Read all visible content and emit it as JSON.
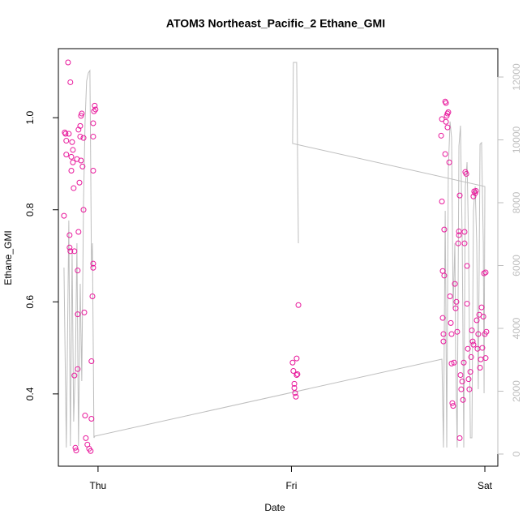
{
  "chart_data": {
    "type": "scatter",
    "title": "ATOM3 Northeast_Pacific_2 Ethane_GMI",
    "xlabel": "Date",
    "ylabel": "Ethane_GMI",
    "xlim": [
      -0.205,
      2.067
    ],
    "xticks": [
      {
        "value": 0,
        "label": "Thu"
      },
      {
        "value": 1,
        "label": "Fri"
      },
      {
        "value": 2,
        "label": "Sat"
      }
    ],
    "ylim": [
      0.243,
      1.15
    ],
    "yticks": [
      0.4,
      0.6,
      0.8,
      {
        "value": 1,
        "label": "1.0"
      }
    ],
    "y2lim": [
      -387,
      12903
    ],
    "y2ticks": [
      0,
      2000,
      4000,
      6000,
      8000,
      10000,
      12000
    ],
    "y2color": "#bebebe",
    "series": [
      {
        "type": "scatter",
        "color": "#e8179b",
        "x": [
          -0.176,
          -0.172,
          -0.168,
          -0.164,
          -0.164,
          -0.155,
          -0.151,
          -0.147,
          -0.147,
          -0.143,
          -0.143,
          -0.138,
          -0.138,
          -0.134,
          -0.13,
          -0.13,
          -0.126,
          -0.122,
          -0.122,
          -0.117,
          -0.113,
          -0.109,
          -0.105,
          -0.105,
          -0.105,
          -0.101,
          -0.101,
          -0.096,
          -0.092,
          -0.092,
          -0.088,
          -0.088,
          -0.084,
          -0.08,
          -0.075,
          -0.075,
          -0.071,
          -0.067,
          -0.063,
          -0.055,
          -0.046,
          -0.038,
          -0.034,
          -0.034,
          -0.029,
          -0.025,
          -0.025,
          -0.025,
          -0.025,
          -0.025,
          -0.021,
          -0.017,
          -0.013,
          1.006,
          1.01,
          1.015,
          1.015,
          1.019,
          1.023,
          1.027,
          1.027,
          1.031,
          1.036,
          1.774,
          1.778,
          1.778,
          1.782,
          1.782,
          1.786,
          1.786,
          1.79,
          1.79,
          1.795,
          1.795,
          1.799,
          1.799,
          1.803,
          1.807,
          1.807,
          1.811,
          1.816,
          1.82,
          1.824,
          1.828,
          1.828,
          1.832,
          1.836,
          1.841,
          1.845,
          1.849,
          1.853,
          1.857,
          1.862,
          1.866,
          1.866,
          1.87,
          1.87,
          1.874,
          1.878,
          1.883,
          1.887,
          1.891,
          1.895,
          1.895,
          1.899,
          1.904,
          1.908,
          1.908,
          1.912,
          1.916,
          1.92,
          1.925,
          1.929,
          1.933,
          1.937,
          1.941,
          1.941,
          1.945,
          1.95,
          1.954,
          1.958,
          1.962,
          1.966,
          1.971,
          1.975,
          1.979,
          1.983,
          1.987,
          1.992,
          1.996,
          2.0,
          2.004,
          2.004,
          2.008
        ],
        "values": [
          0.787,
          0.968,
          0.965,
          0.95,
          0.92,
          1.12,
          0.965,
          0.745,
          0.718,
          1.077,
          0.71,
          0.915,
          0.885,
          0.947,
          0.93,
          0.903,
          0.847,
          0.71,
          0.44,
          0.283,
          0.277,
          0.91,
          0.668,
          0.573,
          0.454,
          0.752,
          0.974,
          0.859,
          0.959,
          0.982,
          1.004,
          0.907,
          1.009,
          0.894,
          0.956,
          0.8,
          0.577,
          0.353,
          0.304,
          0.29,
          0.281,
          0.276,
          0.471,
          0.346,
          0.612,
          0.674,
          0.683,
          0.959,
          0.988,
          0.885,
          1.014,
          1.026,
          1.018,
          0.468,
          0.45,
          0.422,
          0.413,
          0.402,
          0.394,
          0.441,
          0.477,
          0.443,
          0.593,
          0.961,
          0.997,
          0.818,
          0.667,
          0.565,
          0.53,
          0.514,
          0.757,
          0.657,
          1.035,
          0.921,
          1.032,
          0.991,
          1.004,
          1.009,
          0.979,
          1.012,
          0.903,
          0.612,
          0.554,
          0.53,
          0.466,
          0.38,
          0.374,
          0.468,
          0.639,
          0.586,
          0.6,
          0.535,
          0.727,
          0.745,
          0.753,
          0.831,
          0.304,
          0.441,
          0.41,
          0.427,
          0.387,
          0.468,
          0.727,
          0.752,
          0.882,
          0.878,
          0.678,
          0.596,
          0.498,
          0.432,
          0.41,
          0.448,
          0.48,
          0.538,
          0.514,
          0.507,
          0.829,
          0.84,
          0.836,
          0.841,
          0.56,
          0.498,
          0.53,
          0.572,
          0.457,
          0.475,
          0.588,
          0.5,
          0.568,
          0.662,
          0.53,
          0.478,
          0.664,
          0.535
        ]
      },
      {
        "type": "line",
        "axis": "y2",
        "color": "#bebebe",
        "x": [
          -0.176,
          -0.164,
          -0.151,
          -0.143,
          -0.134,
          -0.126,
          -0.117,
          -0.109,
          -0.101,
          -0.092,
          -0.084,
          -0.075,
          -0.067,
          -0.059,
          -0.05,
          -0.042,
          -0.038,
          -0.034,
          -0.029,
          -0.021,
          -0.017,
          1.778,
          1.786,
          1.795,
          1.803,
          1.811,
          1.82,
          1.828,
          1.836,
          1.845,
          1.849,
          1.857,
          1.866,
          1.874,
          1.883,
          1.891,
          1.899,
          1.908,
          1.916,
          1.925,
          1.933,
          1.941,
          1.95,
          1.958,
          1.966,
          1.975,
          1.983,
          1.992,
          1.996,
          2.0,
          1.006,
          1.01,
          1.027,
          1.036
        ],
        "values": [
          5935,
          206,
          7432,
          258,
          6452,
          1032,
          2839,
          6710,
          258,
          5419,
          2323,
          8000,
          10581,
          11871,
          12129,
          12206,
          9290,
          5935,
          6710,
          516,
          568,
          3019,
          206,
          7742,
          206,
          9032,
          10581,
          10065,
          4645,
          6710,
          3097,
          206,
          9806,
          10452,
          6710,
          206,
          8516,
          9290,
          6710,
          516,
          516,
          7742,
          8516,
          6710,
          2065,
          9858,
          9910,
          6710,
          1935,
          8516,
          9884,
          12465,
          12465,
          6710
        ]
      }
    ]
  }
}
